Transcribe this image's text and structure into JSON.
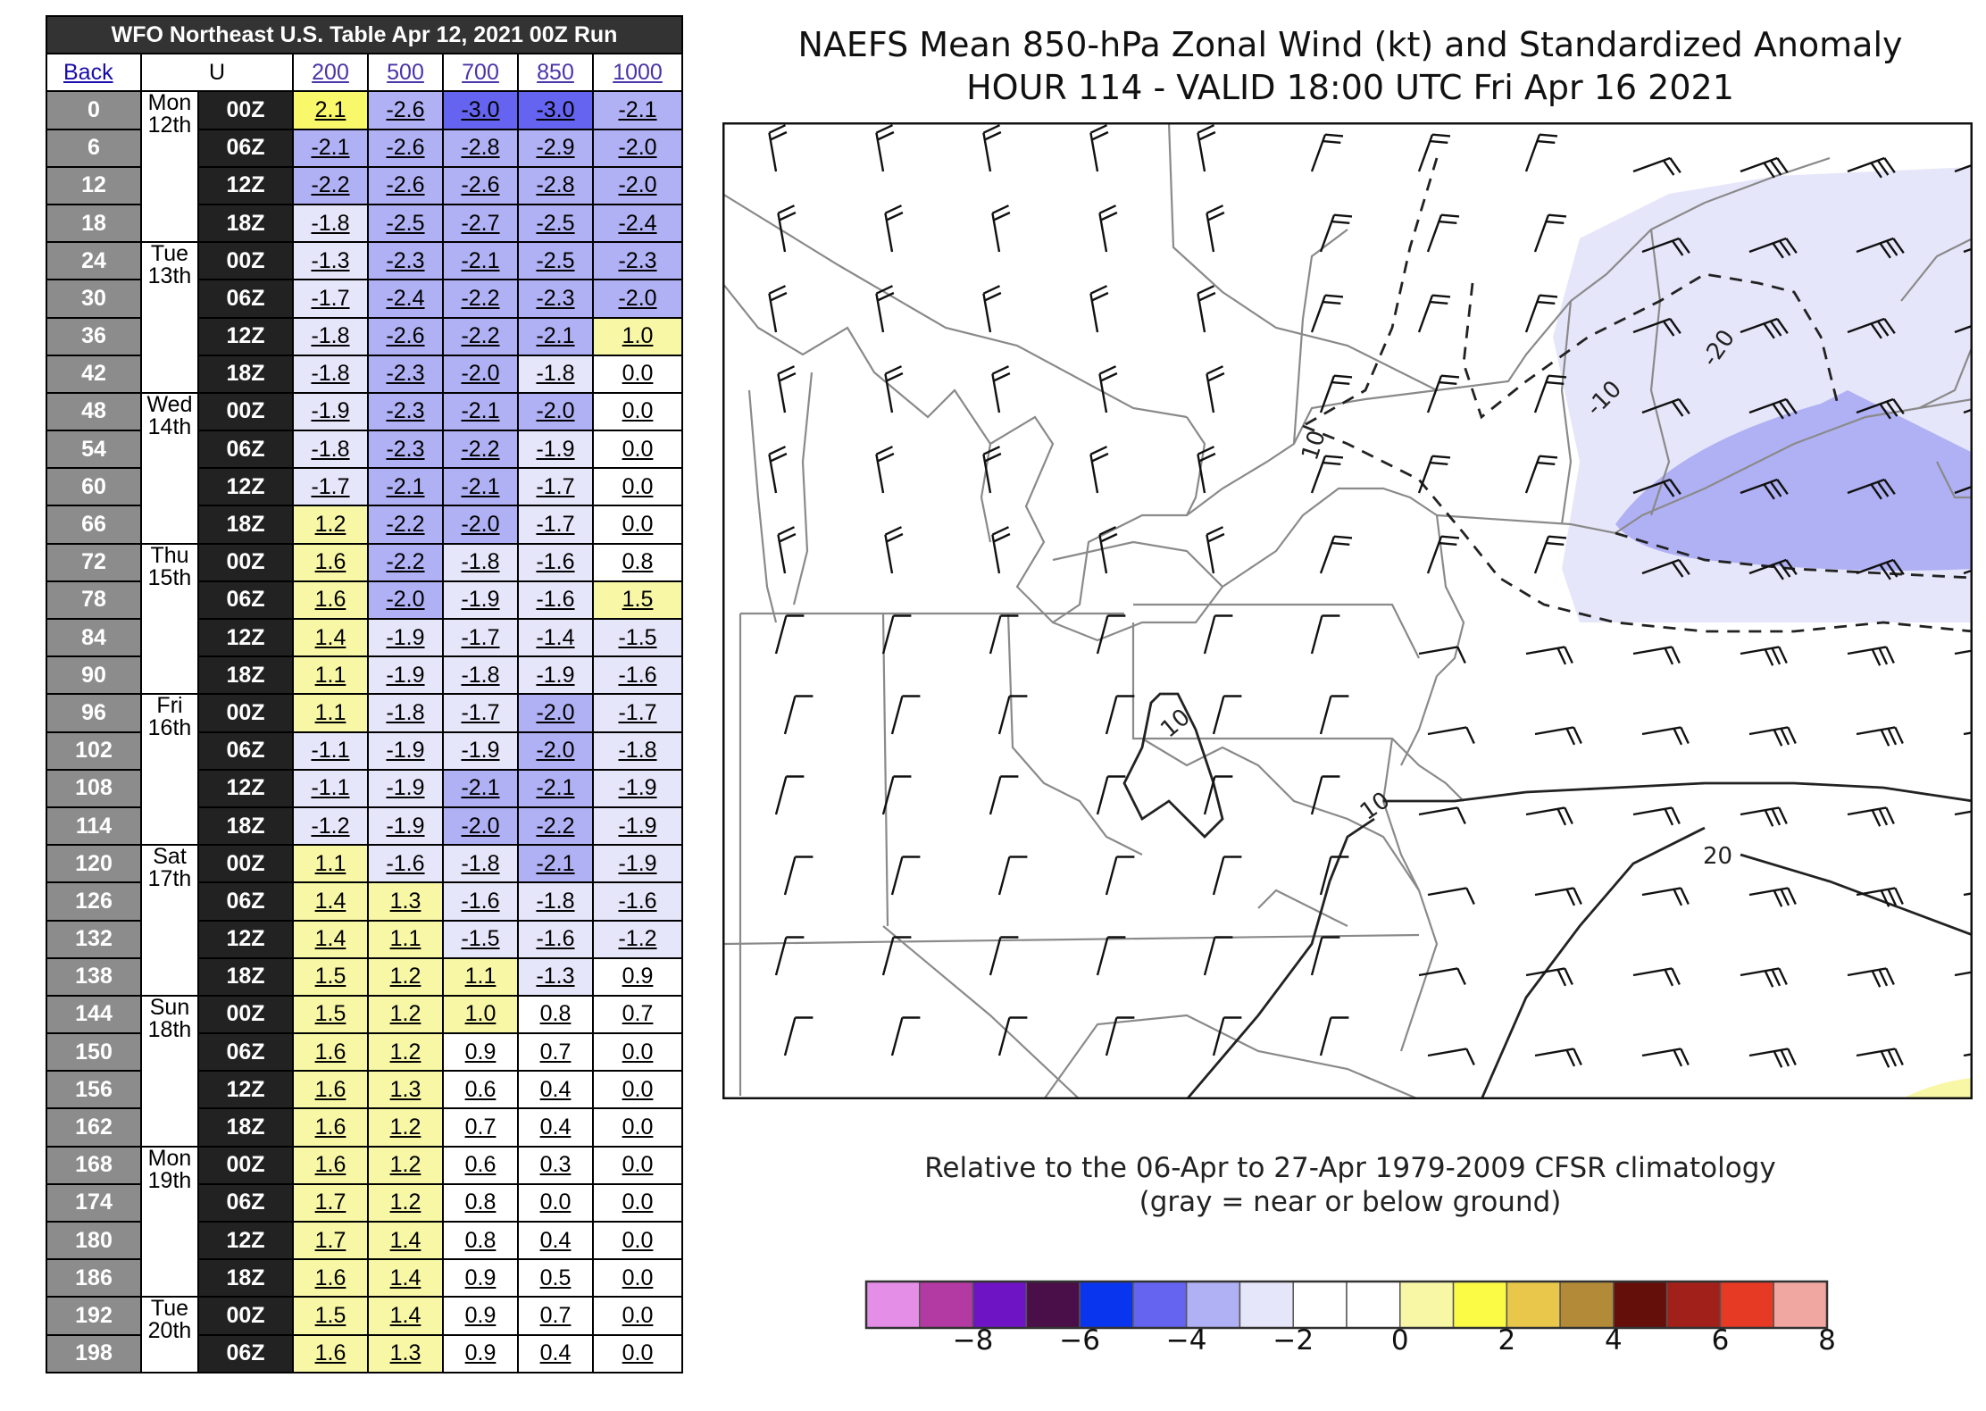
{
  "table": {
    "title": "WFO Northeast U.S. Table   Apr 12, 2021 00Z Run",
    "back_label": "Back",
    "var_label": "U",
    "levels": [
      "200",
      "500",
      "700",
      "850",
      "1000"
    ],
    "rows": [
      {
        "hr": "0",
        "day": "Mon",
        "date": "12th",
        "z": "00Z",
        "vals": [
          "2.1",
          "-2.6",
          "-3.0",
          "-3.0",
          "-2.1"
        ]
      },
      {
        "hr": "6",
        "z": "06Z",
        "vals": [
          "-2.1",
          "-2.6",
          "-2.8",
          "-2.9",
          "-2.0"
        ]
      },
      {
        "hr": "12",
        "z": "12Z",
        "vals": [
          "-2.2",
          "-2.6",
          "-2.6",
          "-2.8",
          "-2.0"
        ]
      },
      {
        "hr": "18",
        "z": "18Z",
        "vals": [
          "-1.8",
          "-2.5",
          "-2.7",
          "-2.5",
          "-2.4"
        ]
      },
      {
        "hr": "24",
        "day": "Tue",
        "date": "13th",
        "z": "00Z",
        "vals": [
          "-1.3",
          "-2.3",
          "-2.1",
          "-2.5",
          "-2.3"
        ]
      },
      {
        "hr": "30",
        "z": "06Z",
        "vals": [
          "-1.7",
          "-2.4",
          "-2.2",
          "-2.3",
          "-2.0"
        ]
      },
      {
        "hr": "36",
        "z": "12Z",
        "vals": [
          "-1.8",
          "-2.6",
          "-2.2",
          "-2.1",
          "1.0"
        ]
      },
      {
        "hr": "42",
        "z": "18Z",
        "vals": [
          "-1.8",
          "-2.3",
          "-2.0",
          "-1.8",
          "0.0"
        ]
      },
      {
        "hr": "48",
        "day": "Wed",
        "date": "14th",
        "z": "00Z",
        "vals": [
          "-1.9",
          "-2.3",
          "-2.1",
          "-2.0",
          "0.0"
        ]
      },
      {
        "hr": "54",
        "z": "06Z",
        "vals": [
          "-1.8",
          "-2.3",
          "-2.2",
          "-1.9",
          "0.0"
        ]
      },
      {
        "hr": "60",
        "z": "12Z",
        "vals": [
          "-1.7",
          "-2.1",
          "-2.1",
          "-1.7",
          "0.0"
        ]
      },
      {
        "hr": "66",
        "z": "18Z",
        "vals": [
          "1.2",
          "-2.2",
          "-2.0",
          "-1.7",
          "0.0"
        ]
      },
      {
        "hr": "72",
        "day": "Thu",
        "date": "15th",
        "z": "00Z",
        "vals": [
          "1.6",
          "-2.2",
          "-1.8",
          "-1.6",
          "0.8"
        ]
      },
      {
        "hr": "78",
        "z": "06Z",
        "vals": [
          "1.6",
          "-2.0",
          "-1.9",
          "-1.6",
          "1.5"
        ]
      },
      {
        "hr": "84",
        "z": "12Z",
        "vals": [
          "1.4",
          "-1.9",
          "-1.7",
          "-1.4",
          "-1.5"
        ]
      },
      {
        "hr": "90",
        "z": "18Z",
        "vals": [
          "1.1",
          "-1.9",
          "-1.8",
          "-1.9",
          "-1.6"
        ]
      },
      {
        "hr": "96",
        "day": "Fri",
        "date": "16th",
        "z": "00Z",
        "vals": [
          "1.1",
          "-1.8",
          "-1.7",
          "-2.0",
          "-1.7"
        ]
      },
      {
        "hr": "102",
        "z": "06Z",
        "vals": [
          "-1.1",
          "-1.9",
          "-1.9",
          "-2.0",
          "-1.8"
        ]
      },
      {
        "hr": "108",
        "z": "12Z",
        "vals": [
          "-1.1",
          "-1.9",
          "-2.1",
          "-2.1",
          "-1.9"
        ]
      },
      {
        "hr": "114",
        "z": "18Z",
        "vals": [
          "-1.2",
          "-1.9",
          "-2.0",
          "-2.2",
          "-1.9"
        ]
      },
      {
        "hr": "120",
        "day": "Sat",
        "date": "17th",
        "z": "00Z",
        "vals": [
          "1.1",
          "-1.6",
          "-1.8",
          "-2.1",
          "-1.9"
        ]
      },
      {
        "hr": "126",
        "z": "06Z",
        "vals": [
          "1.4",
          "1.3",
          "-1.6",
          "-1.8",
          "-1.6"
        ]
      },
      {
        "hr": "132",
        "z": "12Z",
        "vals": [
          "1.4",
          "1.1",
          "-1.5",
          "-1.6",
          "-1.2"
        ]
      },
      {
        "hr": "138",
        "z": "18Z",
        "vals": [
          "1.5",
          "1.2",
          "1.1",
          "-1.3",
          "0.9"
        ]
      },
      {
        "hr": "144",
        "day": "Sun",
        "date": "18th",
        "z": "00Z",
        "vals": [
          "1.5",
          "1.2",
          "1.0",
          "0.8",
          "0.7"
        ]
      },
      {
        "hr": "150",
        "z": "06Z",
        "vals": [
          "1.6",
          "1.2",
          "0.9",
          "0.7",
          "0.0"
        ]
      },
      {
        "hr": "156",
        "z": "12Z",
        "vals": [
          "1.6",
          "1.3",
          "0.6",
          "0.4",
          "0.0"
        ]
      },
      {
        "hr": "162",
        "z": "18Z",
        "vals": [
          "1.6",
          "1.2",
          "0.7",
          "0.4",
          "0.0"
        ]
      },
      {
        "hr": "168",
        "day": "Mon",
        "date": "19th",
        "z": "00Z",
        "vals": [
          "1.6",
          "1.2",
          "0.6",
          "0.3",
          "0.0"
        ]
      },
      {
        "hr": "174",
        "z": "06Z",
        "vals": [
          "1.7",
          "1.2",
          "0.8",
          "0.0",
          "0.0"
        ]
      },
      {
        "hr": "180",
        "z": "12Z",
        "vals": [
          "1.7",
          "1.4",
          "0.8",
          "0.4",
          "0.0"
        ]
      },
      {
        "hr": "186",
        "z": "18Z",
        "vals": [
          "1.6",
          "1.4",
          "0.9",
          "0.5",
          "0.0"
        ]
      },
      {
        "hr": "192",
        "day": "Tue",
        "date": "20th",
        "z": "00Z",
        "vals": [
          "1.5",
          "1.4",
          "0.9",
          "0.7",
          "0.0"
        ]
      },
      {
        "hr": "198",
        "z": "06Z",
        "vals": [
          "1.6",
          "1.3",
          "0.9",
          "0.4",
          "0.0"
        ]
      }
    ],
    "highlight_cell": {
      "row": 0,
      "col": 0,
      "color": "#f8f86a"
    }
  },
  "figure": {
    "title_line1": "NAEFS Mean 850-hPa Zonal Wind (kt) and Standardized Anomaly",
    "title_line2": "HOUR 114 - VALID 18:00 UTC Fri Apr 16 2021",
    "note_line1": "Relative to the 06-Apr to 27-Apr 1979-2009 CFSR climatology",
    "note_line2": "(gray = near or below ground)",
    "contour_labels": [
      "10",
      "-10",
      "-20",
      "10",
      "10",
      "20"
    ],
    "colorbar": {
      "colors": [
        "#e48ee8",
        "#b43aa3",
        "#6e14c4",
        "#4a0f48",
        "#0a35ee",
        "#6464f0",
        "#b0b0f4",
        "#e6e6fa",
        "#ffffff",
        "#ffffff",
        "#f7f7a6",
        "#fbfb46",
        "#e8c74a",
        "#b38b38",
        "#640f0a",
        "#a2201a",
        "#e63a24",
        "#f0a7a2"
      ],
      "ticks": [
        "−8",
        "−6",
        "−4",
        "−2",
        "0",
        "2",
        "4",
        "6",
        "8"
      ]
    }
  }
}
